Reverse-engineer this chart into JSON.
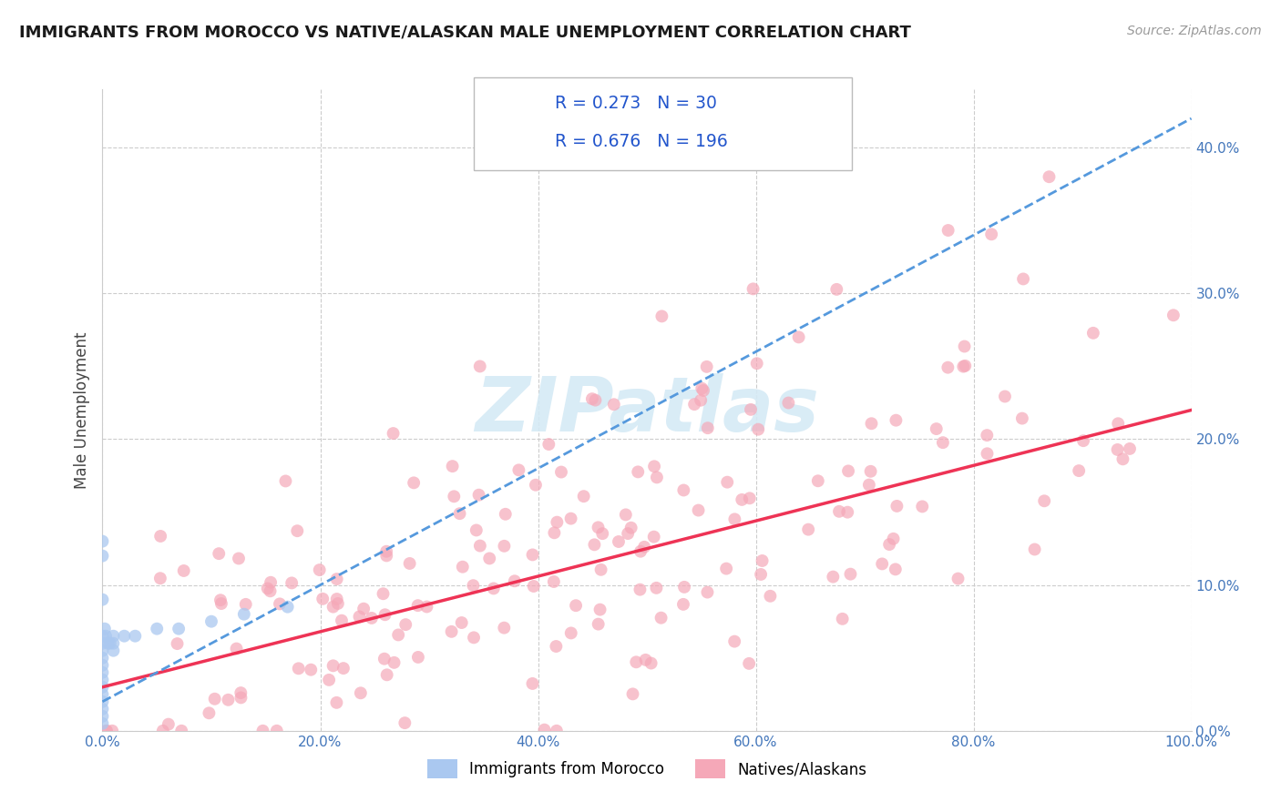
{
  "title": "IMMIGRANTS FROM MOROCCO VS NATIVE/ALASKAN MALE UNEMPLOYMENT CORRELATION CHART",
  "source": "Source: ZipAtlas.com",
  "ylabel_label": "Male Unemployment",
  "legend_label1": "Immigrants from Morocco",
  "legend_label2": "Natives/Alaskans",
  "R1": 0.273,
  "N1": 30,
  "R2": 0.676,
  "N2": 196,
  "xlim": [
    0.0,
    1.0
  ],
  "ylim": [
    0.0,
    0.44
  ],
  "xticks": [
    0.0,
    0.2,
    0.4,
    0.6,
    0.8,
    1.0
  ],
  "yticks": [
    0.0,
    0.1,
    0.2,
    0.3,
    0.4
  ],
  "background_color": "#ffffff",
  "color1": "#aac8f0",
  "color2": "#f5a8b8",
  "line_color1": "#5599dd",
  "line_color2": "#ee3355",
  "tick_color": "#4477bb",
  "grid_color": "#cccccc",
  "watermark_color": "#d5eaf5"
}
